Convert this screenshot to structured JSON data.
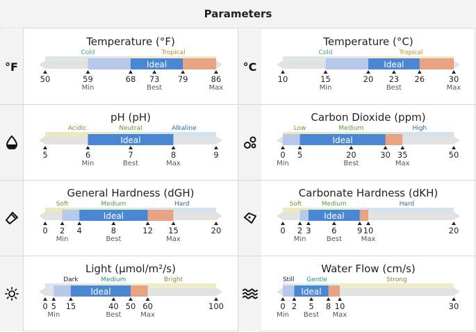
{
  "header": {
    "title": "Parameters"
  },
  "colors": {
    "cold": "#dbe8e6",
    "tropical": "#f3e9c9",
    "range": "#b6c9ea",
    "ideal": "#4a86d2",
    "high": "#e8a383",
    "track": "#e2e2e2",
    "acidic": "#ece8c2",
    "neutral": "#ddebd0",
    "alkaline": "#d6e2ec",
    "hard": "#d6e2ec",
    "still": "#e2e2f4",
    "gentle": "#d4f0f1",
    "strong": "#eeebc8"
  },
  "panels": [
    {
      "key": "temp-f",
      "title": "Temperature (°F)",
      "icon": "°F",
      "icon_name": "fahrenheit-icon",
      "min": 50,
      "max": 86,
      "ideal_label": "Ideal",
      "zones": [
        {
          "label": "Cold",
          "from": 50,
          "to": 68,
          "color": "#dbe8e6",
          "label_color": "#4a9a8a"
        },
        {
          "label": "Tropical",
          "from": 68,
          "to": 86,
          "color": "#f3e9c9",
          "label_color": "#c08a2a"
        }
      ],
      "range": [
        59,
        79
      ],
      "ideal": [
        68,
        79
      ],
      "high": [
        79,
        86
      ],
      "ticks": [
        {
          "value": 50,
          "label": "50",
          "sub": ""
        },
        {
          "value": 59,
          "label": "59",
          "sub": "Min"
        },
        {
          "value": 68,
          "label": "68",
          "sub": ""
        },
        {
          "value": 73,
          "label": "73",
          "sub": "Best"
        },
        {
          "value": 79,
          "label": "79",
          "sub": ""
        },
        {
          "value": 86,
          "label": "86",
          "sub": "Max"
        }
      ]
    },
    {
      "key": "temp-c",
      "title": "Temperature (°C)",
      "icon": "°C",
      "icon_name": "celsius-icon",
      "min": 10,
      "max": 30,
      "ideal_label": "Ideal",
      "zones": [
        {
          "label": "Cold",
          "from": 10,
          "to": 20,
          "color": "#dbe8e6",
          "label_color": "#4a9a8a"
        },
        {
          "label": "Tropical",
          "from": 20,
          "to": 30,
          "color": "#f3e9c9",
          "label_color": "#c08a2a"
        }
      ],
      "range": [
        15,
        26
      ],
      "ideal": [
        20,
        26
      ],
      "high": [
        26,
        30
      ],
      "ticks": [
        {
          "value": 10,
          "label": "10",
          "sub": ""
        },
        {
          "value": 15,
          "label": "15",
          "sub": "Min"
        },
        {
          "value": 20,
          "label": "20",
          "sub": ""
        },
        {
          "value": 23,
          "label": "23",
          "sub": "Best"
        },
        {
          "value": 26,
          "label": "26",
          "sub": ""
        },
        {
          "value": 30,
          "label": "30",
          "sub": "Max"
        }
      ]
    },
    {
      "key": "ph",
      "title": "pH (pH)",
      "icon": "",
      "icon_name": "drop-icon",
      "min": 5,
      "max": 9,
      "ideal_label": "Ideal",
      "zones": [
        {
          "label": "Acidic",
          "from": 5,
          "to": 6.5,
          "color": "#ece8c2",
          "label_color": "#8a8a2a"
        },
        {
          "label": "Neutral",
          "from": 6.5,
          "to": 7.5,
          "color": "#ddebd0",
          "label_color": "#5a9a3a"
        },
        {
          "label": "Alkaline",
          "from": 7.5,
          "to": 9,
          "color": "#d6e2ec",
          "label_color": "#2a6aa0"
        }
      ],
      "range": [
        6,
        8
      ],
      "ideal": [
        6,
        8
      ],
      "high": [
        8,
        8
      ],
      "ticks": [
        {
          "value": 5,
          "label": "5",
          "sub": ""
        },
        {
          "value": 6,
          "label": "6",
          "sub": "Min"
        },
        {
          "value": 7,
          "label": "7",
          "sub": "Best"
        },
        {
          "value": 8,
          "label": "8",
          "sub": "Max"
        },
        {
          "value": 9,
          "label": "9",
          "sub": ""
        }
      ]
    },
    {
      "key": "co2",
      "title": "Carbon Dioxide (ppm)",
      "icon": "",
      "icon_name": "bubbles-icon",
      "min": 0,
      "max": 50,
      "ideal_label": "Ideal",
      "zones": [
        {
          "label": "Low",
          "from": 0,
          "to": 10,
          "color": "#ece8c2",
          "label_color": "#8a8a2a"
        },
        {
          "label": "Medium",
          "from": 10,
          "to": 30,
          "color": "#ddebd0",
          "label_color": "#5a9a3a"
        },
        {
          "label": "High",
          "from": 30,
          "to": 50,
          "color": "#d6e2ec",
          "label_color": "#2a6aa0"
        }
      ],
      "range": [
        0,
        35
      ],
      "ideal": [
        5,
        30
      ],
      "high": [
        30,
        35
      ],
      "ticks": [
        {
          "value": 0,
          "label": "0",
          "sub": "Min"
        },
        {
          "value": 5,
          "label": "5",
          "sub": ""
        },
        {
          "value": 20,
          "label": "20",
          "sub": "Best"
        },
        {
          "value": 30,
          "label": "30",
          "sub": ""
        },
        {
          "value": 35,
          "label": "35",
          "sub": "Max"
        },
        {
          "value": 50,
          "label": "50",
          "sub": ""
        }
      ]
    },
    {
      "key": "gh",
      "title": "General Hardness (dGH)",
      "icon": "",
      "icon_name": "mineral-icon",
      "min": 0,
      "max": 20,
      "ideal_label": "Ideal",
      "zones": [
        {
          "label": "Soft",
          "from": 0,
          "to": 4,
          "color": "#ece8c2",
          "label_color": "#8a8a2a"
        },
        {
          "label": "Medium",
          "from": 4,
          "to": 12,
          "color": "#ddebd0",
          "label_color": "#5a9a3a"
        },
        {
          "label": "Hard",
          "from": 12,
          "to": 20,
          "color": "#d6e2ec",
          "label_color": "#2a6aa0"
        }
      ],
      "range": [
        2,
        15
      ],
      "ideal": [
        4,
        12
      ],
      "high": [
        12,
        15
      ],
      "ticks": [
        {
          "value": 0,
          "label": "0",
          "sub": ""
        },
        {
          "value": 2,
          "label": "2",
          "sub": "Min"
        },
        {
          "value": 4,
          "label": "4",
          "sub": ""
        },
        {
          "value": 8,
          "label": "8",
          "sub": "Best"
        },
        {
          "value": 12,
          "label": "12",
          "sub": ""
        },
        {
          "value": 15,
          "label": "15",
          "sub": "Max"
        },
        {
          "value": 20,
          "label": "20",
          "sub": ""
        }
      ]
    },
    {
      "key": "kh",
      "title": "Carbonate Hardness (dKH)",
      "icon": "",
      "icon_name": "gem-icon",
      "min": 0,
      "max": 20,
      "ideal_label": "Ideal",
      "zones": [
        {
          "label": "Soft",
          "from": 0,
          "to": 3,
          "color": "#ece8c2",
          "label_color": "#8a8a2a"
        },
        {
          "label": "Medium",
          "from": 3,
          "to": 9,
          "color": "#ddebd0",
          "label_color": "#5a9a3a"
        },
        {
          "label": "Hard",
          "from": 9,
          "to": 20,
          "color": "#d6e2ec",
          "label_color": "#2a6aa0"
        }
      ],
      "range": [
        2,
        10
      ],
      "ideal": [
        3,
        9
      ],
      "high": [
        9,
        10
      ],
      "ticks": [
        {
          "value": 0,
          "label": "0",
          "sub": ""
        },
        {
          "value": 2,
          "label": "2",
          "sub": "Min"
        },
        {
          "value": 3,
          "label": "3",
          "sub": ""
        },
        {
          "value": 6,
          "label": "6",
          "sub": "Best"
        },
        {
          "value": 9,
          "label": "9",
          "sub": ""
        },
        {
          "value": 10,
          "label": "10",
          "sub": "Max"
        },
        {
          "value": 20,
          "label": "20",
          "sub": ""
        }
      ]
    },
    {
      "key": "light",
      "title": "Light (µmol/m²/s)",
      "icon": "",
      "icon_name": "sun-icon",
      "min": 0,
      "max": 100,
      "ideal_label": "Ideal",
      "zones": [
        {
          "label": "Dark",
          "from": 0,
          "to": 30,
          "color": "#e2e2f4",
          "label_color": "#222"
        },
        {
          "label": "Medium",
          "from": 30,
          "to": 50,
          "color": "#ddebd0",
          "label_color": "#2a8a8a"
        },
        {
          "label": "Bright",
          "from": 50,
          "to": 100,
          "color": "#eeebc8",
          "label_color": "#8a8a2a"
        }
      ],
      "range": [
        5,
        60
      ],
      "ideal": [
        15,
        50
      ],
      "high": [
        50,
        60
      ],
      "ticks": [
        {
          "value": 0,
          "label": "0",
          "sub": ""
        },
        {
          "value": 5,
          "label": "5",
          "sub": "Min"
        },
        {
          "value": 15,
          "label": "15",
          "sub": ""
        },
        {
          "value": 40,
          "label": "40",
          "sub": "Best"
        },
        {
          "value": 50,
          "label": "50",
          "sub": ""
        },
        {
          "value": 60,
          "label": "60",
          "sub": "Max"
        },
        {
          "value": 100,
          "label": "100",
          "sub": ""
        }
      ]
    },
    {
      "key": "flow",
      "title": "Water Flow (cm/s)",
      "icon": "",
      "icon_name": "waves-icon",
      "min": 0,
      "max": 30,
      "ideal_label": "Ideal",
      "zones": [
        {
          "label": "Still",
          "from": 0,
          "to": 2,
          "color": "#e2e2f4",
          "label_color": "#222"
        },
        {
          "label": "Gentle",
          "from": 2,
          "to": 10,
          "color": "#d4f0f1",
          "label_color": "#2a8a8a"
        },
        {
          "label": "Strong",
          "from": 10,
          "to": 30,
          "color": "#eeebc8",
          "label_color": "#8a8a2a"
        }
      ],
      "range": [
        0,
        10
      ],
      "ideal": [
        2,
        8
      ],
      "high": [
        8,
        10
      ],
      "ticks": [
        {
          "value": 0,
          "label": "0",
          "sub": "Min"
        },
        {
          "value": 2,
          "label": "2",
          "sub": ""
        },
        {
          "value": 5,
          "label": "5",
          "sub": "Best"
        },
        {
          "value": 8,
          "label": "8",
          "sub": ""
        },
        {
          "value": 10,
          "label": "10",
          "sub": "Max"
        },
        {
          "value": 30,
          "label": "30",
          "sub": ""
        }
      ]
    }
  ]
}
